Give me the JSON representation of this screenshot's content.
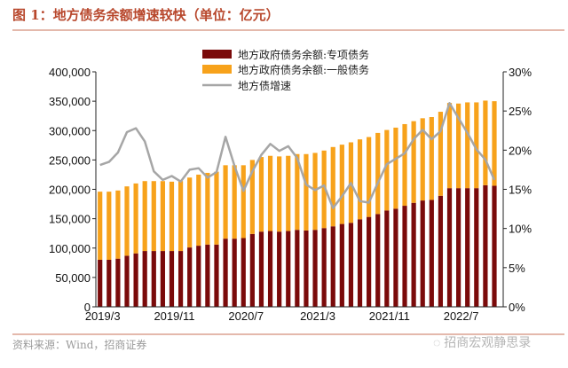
{
  "title": "图 1：地方债务余额增速较快（单位：亿元）",
  "source": "资料来源：Wind，招商证券",
  "watermark": "招商宏观静思录",
  "colors": {
    "special": "#7a0a0a",
    "general": "#f7a21b",
    "growth": "#a6a6a6",
    "accent": "#b8472c"
  },
  "chart_data": {
    "type": "bar",
    "stacked": true,
    "title": "",
    "xlabel": "",
    "ylabel": "",
    "ylim": [
      0,
      400000
    ],
    "y2lim": [
      0,
      30
    ],
    "yticks": [
      "0",
      "50,000",
      "100,000",
      "150,000",
      "200,000",
      "250,000",
      "300,000",
      "350,000",
      "400,000"
    ],
    "y2ticks": [
      "0%",
      "5%",
      "10%",
      "15%",
      "20%",
      "25%",
      "30%"
    ],
    "xticks": [
      "2019/3",
      "2019/11",
      "2020/7",
      "2021/3",
      "2021/11",
      "2022/7"
    ],
    "legend_position": "top-center",
    "grid": false,
    "categories": [
      "2019/3",
      "2019/4",
      "2019/5",
      "2019/6",
      "2019/7",
      "2019/8",
      "2019/9",
      "2019/10",
      "2019/11",
      "2019/12",
      "2020/1",
      "2020/2",
      "2020/3",
      "2020/4",
      "2020/5",
      "2020/6",
      "2020/7",
      "2020/8",
      "2020/9",
      "2020/10",
      "2020/11",
      "2020/12",
      "2021/1",
      "2021/2",
      "2021/3",
      "2021/4",
      "2021/5",
      "2021/6",
      "2021/7",
      "2021/8",
      "2021/9",
      "2021/10",
      "2021/11",
      "2021/12",
      "2022/1",
      "2022/2",
      "2022/3",
      "2022/4",
      "2022/5",
      "2022/6",
      "2022/7",
      "2022/8",
      "2022/9",
      "2022/10",
      "2022/11"
    ],
    "series": [
      {
        "name": "地方政府债务余额:专项债务",
        "type": "bar",
        "axis": "left",
        "values": [
          80000,
          80000,
          82000,
          87000,
          91000,
          95000,
          95000,
          95000,
          95000,
          95000,
          101000,
          104000,
          106000,
          106000,
          116000,
          116000,
          117000,
          124000,
          128000,
          129000,
          128000,
          129000,
          131000,
          130000,
          131000,
          134000,
          137000,
          141000,
          143000,
          149000,
          153000,
          158000,
          164000,
          167000,
          172000,
          177000,
          181000,
          182000,
          189000,
          202000,
          202000,
          202000,
          202000,
          207000,
          206000
        ]
      },
      {
        "name": "地方政府债务余额:一般债务",
        "type": "bar",
        "axis": "left",
        "note_total": false,
        "values": [
          116000,
          116000,
          116000,
          118000,
          119000,
          119000,
          119000,
          119000,
          118000,
          119000,
          119000,
          121000,
          122000,
          124000,
          125000,
          125000,
          124000,
          126000,
          127000,
          128000,
          128000,
          128000,
          129000,
          130000,
          131000,
          132000,
          135000,
          135000,
          137000,
          136000,
          136000,
          138000,
          137000,
          138000,
          139000,
          139000,
          140000,
          141000,
          143000,
          145000,
          144000,
          146000,
          146000,
          144000,
          144000
        ]
      },
      {
        "name": "地方债增速",
        "type": "line",
        "axis": "right",
        "values": [
          18.1,
          18.5,
          19.7,
          22.3,
          22.8,
          21.1,
          17.3,
          16.2,
          16.7,
          16.0,
          17.5,
          17.7,
          16.5,
          17.2,
          21.7,
          18.0,
          14.8,
          17.3,
          19.4,
          20.8,
          19.9,
          20.5,
          19.0,
          15.6,
          14.9,
          15.5,
          12.6,
          14.1,
          15.8,
          13.5,
          13.3,
          15.8,
          18.2,
          18.9,
          19.6,
          21.4,
          22.6,
          21.4,
          22.4,
          26.0,
          24.1,
          22.2,
          20.1,
          18.8,
          16.2
        ]
      }
    ]
  }
}
